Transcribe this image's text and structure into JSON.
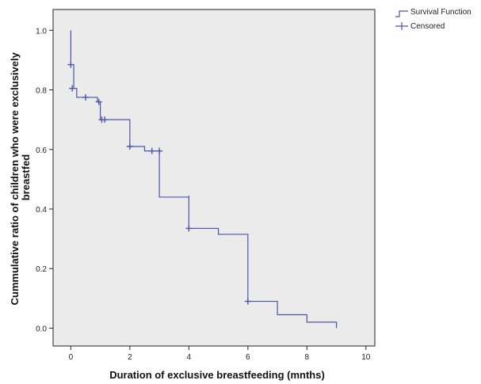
{
  "chart_data": {
    "type": "line",
    "title": "",
    "xlabel": "Duration of exclusive breastfeeding (mnths)",
    "ylabel_lines": [
      "Cummulative ratio of children who were exclusively",
      "breastfed"
    ],
    "xlim": [
      -0.6,
      10.3
    ],
    "ylim": [
      -0.06,
      1.07
    ],
    "x_ticks": [
      0,
      2,
      4,
      6,
      8,
      10
    ],
    "y_ticks": [
      0.0,
      0.2,
      0.4,
      0.6,
      0.8,
      1.0
    ],
    "y_tick_labels": [
      "0.0",
      "0.2",
      "0.4",
      "0.6",
      "0.8",
      "1.0"
    ],
    "grid": false,
    "plot_background": "#ebebeb",
    "legend_position": "top-right",
    "series": [
      {
        "name": "Survival Function",
        "color": "#4a55a8",
        "kind": "step",
        "points": [
          {
            "x": 0.0,
            "y": 1.0
          },
          {
            "x": 0.0,
            "y": 0.885
          },
          {
            "x": 0.1,
            "y": 0.805
          },
          {
            "x": 0.2,
            "y": 0.775
          },
          {
            "x": 0.9,
            "y": 0.76
          },
          {
            "x": 1.0,
            "y": 0.7
          },
          {
            "x": 2.0,
            "y": 0.61
          },
          {
            "x": 2.5,
            "y": 0.595
          },
          {
            "x": 3.0,
            "y": 0.44
          },
          {
            "x": 4.0,
            "y": 0.445
          },
          {
            "x": 4.0,
            "y": 0.335
          },
          {
            "x": 5.0,
            "y": 0.315
          },
          {
            "x": 6.0,
            "y": 0.09
          },
          {
            "x": 7.0,
            "y": 0.045
          },
          {
            "x": 8.0,
            "y": 0.02
          },
          {
            "x": 9.0,
            "y": 0.0
          }
        ]
      },
      {
        "name": "Censored",
        "color": "#4a55a8",
        "kind": "marker-plus",
        "points": [
          {
            "x": 0.0,
            "y": 0.885
          },
          {
            "x": 0.05,
            "y": 0.805
          },
          {
            "x": 0.5,
            "y": 0.775
          },
          {
            "x": 0.95,
            "y": 0.76
          },
          {
            "x": 1.05,
            "y": 0.7
          },
          {
            "x": 1.15,
            "y": 0.7
          },
          {
            "x": 2.0,
            "y": 0.61
          },
          {
            "x": 2.75,
            "y": 0.595
          },
          {
            "x": 3.0,
            "y": 0.595
          },
          {
            "x": 4.0,
            "y": 0.335
          },
          {
            "x": 6.0,
            "y": 0.09
          }
        ]
      }
    ]
  }
}
